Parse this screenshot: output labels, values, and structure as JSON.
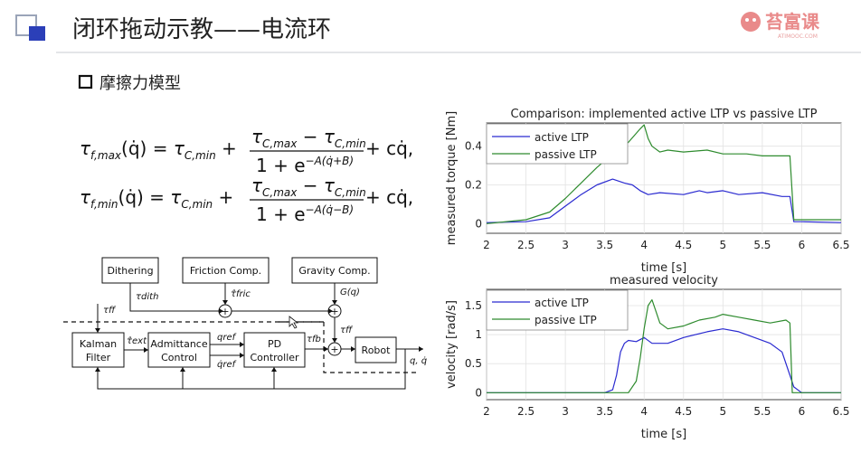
{
  "slide": {
    "title": "闭环拖动示教——电流环",
    "section_heading": "摩擦力模型",
    "logo_text": "苔富课",
    "logo_sub": "ATIMOOC.COM"
  },
  "formulas": [
    {
      "lhs_sym": "τ",
      "lhs_sub": "f,max",
      "lhs_arg": "(q̇) = ",
      "t1_sym": "τ",
      "t1_sub": "C,min",
      "plus": " + ",
      "num_a": "τ",
      "num_a_sub": "C,max",
      "num_minus": " − ",
      "num_b": "τ",
      "num_b_sub": "C,min",
      "den_base": "1 + e",
      "den_exp": "−A(q̇+B)",
      "tail": " + cq̇,"
    },
    {
      "lhs_sym": "τ",
      "lhs_sub": "f,min",
      "lhs_arg": "(q̇) = ",
      "t1_sym": "τ",
      "t1_sub": "C,min",
      "plus": " + ",
      "num_a": "τ",
      "num_a_sub": "C,max",
      "num_minus": " − ",
      "num_b": "τ",
      "num_b_sub": "C,min",
      "den_base": "1 + e",
      "den_exp": "−A(q̇−B)",
      "tail": " + cq̇,"
    }
  ],
  "block_diagram": {
    "blocks": {
      "dithering": "Dithering",
      "friction": "Friction Comp.",
      "gravity": "Gravity Comp.",
      "kalman_1": "Kalman",
      "kalman_2": "Filter",
      "admittance_1": "Admittance",
      "admittance_2": "Control",
      "pd_1": "PD",
      "pd_2": "Controller",
      "robot": "Robot"
    },
    "signals": {
      "tau_dith": "τdith",
      "tau_fric": "τ̂fric",
      "g_q": "G(q)",
      "tau_ff_left": "τff",
      "tau_ff_right": "τff",
      "tau_fb": "τfb",
      "tau_ext": "τ̂ext",
      "q_ref": "qref",
      "qdot_ref": "q̇ref",
      "q_out": "q, q̇"
    },
    "plus_sign": "+"
  },
  "chart_data": [
    {
      "type": "line",
      "title": "Comparison: implemented active LTP vs passive LTP",
      "xlabel": "time [s]",
      "ylabel": "measured torque [Nm]",
      "xlim": [
        2,
        6.5
      ],
      "ylim": [
        -0.05,
        0.52
      ],
      "xticks": [
        "2",
        "2.5",
        "3",
        "3.5",
        "4",
        "4.5",
        "5",
        "5.5",
        "6",
        "6.5"
      ],
      "yticks": [
        "0",
        "0.2",
        "0.4"
      ],
      "grid": true,
      "legend": "top-left",
      "series": [
        {
          "name": "active LTP",
          "color": "#2a2ad0",
          "x": [
            2.0,
            2.5,
            2.8,
            3.0,
            3.2,
            3.4,
            3.6,
            3.75,
            3.85,
            3.95,
            4.05,
            4.2,
            4.5,
            4.7,
            4.8,
            5.0,
            5.2,
            5.5,
            5.75,
            5.85,
            5.9,
            6.0,
            6.5
          ],
          "y": [
            0.005,
            0.01,
            0.03,
            0.09,
            0.15,
            0.2,
            0.23,
            0.21,
            0.2,
            0.17,
            0.15,
            0.16,
            0.15,
            0.17,
            0.16,
            0.17,
            0.15,
            0.16,
            0.14,
            0.14,
            0.01,
            0.01,
            0.005
          ]
        },
        {
          "name": "passive LTP",
          "color": "#2e8b2e",
          "x": [
            2.0,
            2.5,
            2.8,
            3.0,
            3.2,
            3.4,
            3.6,
            3.8,
            3.95,
            4.0,
            4.05,
            4.1,
            4.2,
            4.3,
            4.5,
            4.8,
            5.0,
            5.3,
            5.5,
            5.75,
            5.85,
            5.9,
            6.0,
            6.5
          ],
          "y": [
            0.0,
            0.02,
            0.06,
            0.13,
            0.21,
            0.29,
            0.36,
            0.42,
            0.49,
            0.51,
            0.44,
            0.4,
            0.37,
            0.38,
            0.37,
            0.38,
            0.36,
            0.36,
            0.35,
            0.35,
            0.35,
            0.02,
            0.02,
            0.02
          ]
        }
      ]
    },
    {
      "type": "line",
      "title": "measured velocity",
      "xlabel": "time [s]",
      "ylabel": "velocity [rad/s]",
      "xlim": [
        2,
        6.5
      ],
      "ylim": [
        -0.12,
        1.78
      ],
      "xticks": [
        "2",
        "2.5",
        "3",
        "3.5",
        "4",
        "4.5",
        "5",
        "5.5",
        "6",
        "6.5"
      ],
      "yticks": [
        "0",
        "0.5",
        "1",
        "1.5"
      ],
      "grid": true,
      "legend": "top-left",
      "series": [
        {
          "name": "active LTP",
          "color": "#2a2ad0",
          "x": [
            2.0,
            3.5,
            3.6,
            3.65,
            3.7,
            3.75,
            3.8,
            3.9,
            4.0,
            4.1,
            4.3,
            4.5,
            4.8,
            5.0,
            5.2,
            5.4,
            5.6,
            5.75,
            5.85,
            5.9,
            6.0,
            6.5
          ],
          "y": [
            0.0,
            0.0,
            0.05,
            0.3,
            0.7,
            0.85,
            0.9,
            0.88,
            0.95,
            0.85,
            0.85,
            0.95,
            1.05,
            1.1,
            1.05,
            0.95,
            0.85,
            0.7,
            0.3,
            0.1,
            0.0,
            0.0
          ]
        },
        {
          "name": "passive LTP",
          "color": "#2e8b2e",
          "x": [
            2.0,
            3.8,
            3.9,
            3.95,
            4.0,
            4.05,
            4.1,
            4.15,
            4.2,
            4.3,
            4.5,
            4.7,
            4.9,
            5.0,
            5.2,
            5.4,
            5.6,
            5.8,
            5.85,
            5.88,
            6.0,
            6.5
          ],
          "y": [
            0.0,
            0.0,
            0.2,
            0.6,
            1.1,
            1.5,
            1.6,
            1.4,
            1.2,
            1.1,
            1.15,
            1.25,
            1.3,
            1.35,
            1.3,
            1.25,
            1.2,
            1.25,
            1.2,
            0.0,
            0.0,
            0.0
          ]
        }
      ]
    }
  ]
}
